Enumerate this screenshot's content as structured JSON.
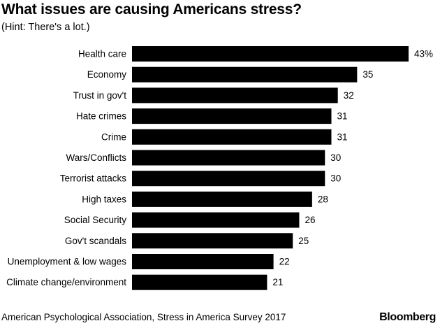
{
  "header": {
    "title": "What issues are causing Americans stress?",
    "subtitle": "(Hint: There's a lot.)"
  },
  "footer": {
    "source": "American Psychological Association, Stress in America Survey 2017",
    "brand": "Bloomberg"
  },
  "chart_data": {
    "type": "bar",
    "orientation": "horizontal",
    "title": "What issues are causing Americans stress?",
    "subtitle": "(Hint: There's a lot.)",
    "categories": [
      "Health care",
      "Economy",
      "Trust in gov't",
      "Hate crimes",
      "Crime",
      "Wars/Conflicts",
      "Terrorist attacks",
      "High taxes",
      "Social Security",
      "Gov't scandals",
      "Unemployment & low wages",
      "Climate change/environment"
    ],
    "values": [
      43,
      35,
      32,
      31,
      31,
      30,
      30,
      28,
      26,
      25,
      22,
      21
    ],
    "value_labels": [
      "43%",
      "35",
      "32",
      "31",
      "31",
      "30",
      "30",
      "28",
      "26",
      "25",
      "22",
      "21"
    ],
    "unit": "%",
    "xlim": [
      0,
      43
    ],
    "bar_color": "#000000",
    "grid": false,
    "legend": "none"
  }
}
